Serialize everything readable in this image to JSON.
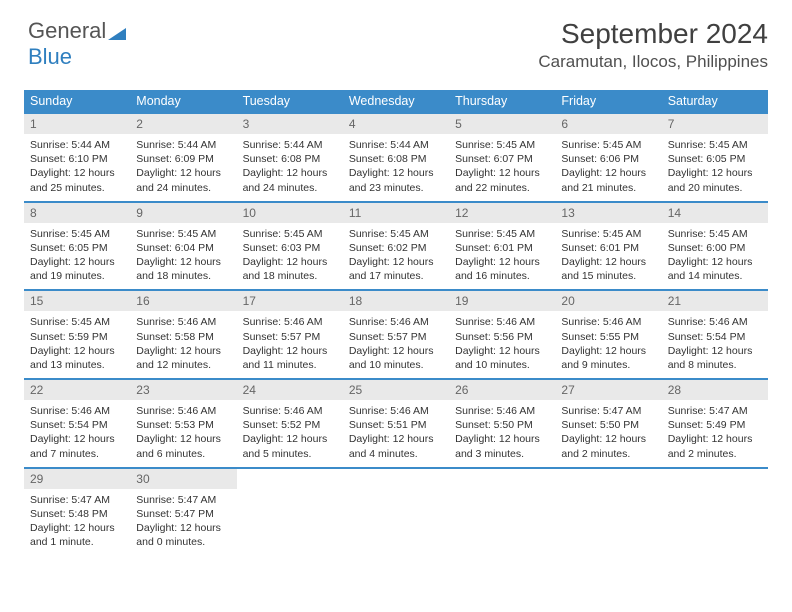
{
  "logo": {
    "word1": "General",
    "word2": "Blue"
  },
  "title": "September 2024",
  "location": "Caramutan, Ilocos, Philippines",
  "colors": {
    "header_bg": "#3b8bc9",
    "header_text": "#ffffff",
    "daynum_bg": "#e9e9e9",
    "border": "#3b8bc9",
    "logo_blue": "#2f7fbf"
  },
  "dayNames": [
    "Sunday",
    "Monday",
    "Tuesday",
    "Wednesday",
    "Thursday",
    "Friday",
    "Saturday"
  ],
  "firstDayIndex": 0,
  "days": [
    {
      "n": 1,
      "sunrise": "5:44 AM",
      "sunset": "6:10 PM",
      "daylight": "12 hours and 25 minutes."
    },
    {
      "n": 2,
      "sunrise": "5:44 AM",
      "sunset": "6:09 PM",
      "daylight": "12 hours and 24 minutes."
    },
    {
      "n": 3,
      "sunrise": "5:44 AM",
      "sunset": "6:08 PM",
      "daylight": "12 hours and 24 minutes."
    },
    {
      "n": 4,
      "sunrise": "5:44 AM",
      "sunset": "6:08 PM",
      "daylight": "12 hours and 23 minutes."
    },
    {
      "n": 5,
      "sunrise": "5:45 AM",
      "sunset": "6:07 PM",
      "daylight": "12 hours and 22 minutes."
    },
    {
      "n": 6,
      "sunrise": "5:45 AM",
      "sunset": "6:06 PM",
      "daylight": "12 hours and 21 minutes."
    },
    {
      "n": 7,
      "sunrise": "5:45 AM",
      "sunset": "6:05 PM",
      "daylight": "12 hours and 20 minutes."
    },
    {
      "n": 8,
      "sunrise": "5:45 AM",
      "sunset": "6:05 PM",
      "daylight": "12 hours and 19 minutes."
    },
    {
      "n": 9,
      "sunrise": "5:45 AM",
      "sunset": "6:04 PM",
      "daylight": "12 hours and 18 minutes."
    },
    {
      "n": 10,
      "sunrise": "5:45 AM",
      "sunset": "6:03 PM",
      "daylight": "12 hours and 18 minutes."
    },
    {
      "n": 11,
      "sunrise": "5:45 AM",
      "sunset": "6:02 PM",
      "daylight": "12 hours and 17 minutes."
    },
    {
      "n": 12,
      "sunrise": "5:45 AM",
      "sunset": "6:01 PM",
      "daylight": "12 hours and 16 minutes."
    },
    {
      "n": 13,
      "sunrise": "5:45 AM",
      "sunset": "6:01 PM",
      "daylight": "12 hours and 15 minutes."
    },
    {
      "n": 14,
      "sunrise": "5:45 AM",
      "sunset": "6:00 PM",
      "daylight": "12 hours and 14 minutes."
    },
    {
      "n": 15,
      "sunrise": "5:45 AM",
      "sunset": "5:59 PM",
      "daylight": "12 hours and 13 minutes."
    },
    {
      "n": 16,
      "sunrise": "5:46 AM",
      "sunset": "5:58 PM",
      "daylight": "12 hours and 12 minutes."
    },
    {
      "n": 17,
      "sunrise": "5:46 AM",
      "sunset": "5:57 PM",
      "daylight": "12 hours and 11 minutes."
    },
    {
      "n": 18,
      "sunrise": "5:46 AM",
      "sunset": "5:57 PM",
      "daylight": "12 hours and 10 minutes."
    },
    {
      "n": 19,
      "sunrise": "5:46 AM",
      "sunset": "5:56 PM",
      "daylight": "12 hours and 10 minutes."
    },
    {
      "n": 20,
      "sunrise": "5:46 AM",
      "sunset": "5:55 PM",
      "daylight": "12 hours and 9 minutes."
    },
    {
      "n": 21,
      "sunrise": "5:46 AM",
      "sunset": "5:54 PM",
      "daylight": "12 hours and 8 minutes."
    },
    {
      "n": 22,
      "sunrise": "5:46 AM",
      "sunset": "5:54 PM",
      "daylight": "12 hours and 7 minutes."
    },
    {
      "n": 23,
      "sunrise": "5:46 AM",
      "sunset": "5:53 PM",
      "daylight": "12 hours and 6 minutes."
    },
    {
      "n": 24,
      "sunrise": "5:46 AM",
      "sunset": "5:52 PM",
      "daylight": "12 hours and 5 minutes."
    },
    {
      "n": 25,
      "sunrise": "5:46 AM",
      "sunset": "5:51 PM",
      "daylight": "12 hours and 4 minutes."
    },
    {
      "n": 26,
      "sunrise": "5:46 AM",
      "sunset": "5:50 PM",
      "daylight": "12 hours and 3 minutes."
    },
    {
      "n": 27,
      "sunrise": "5:47 AM",
      "sunset": "5:50 PM",
      "daylight": "12 hours and 2 minutes."
    },
    {
      "n": 28,
      "sunrise": "5:47 AM",
      "sunset": "5:49 PM",
      "daylight": "12 hours and 2 minutes."
    },
    {
      "n": 29,
      "sunrise": "5:47 AM",
      "sunset": "5:48 PM",
      "daylight": "12 hours and 1 minute."
    },
    {
      "n": 30,
      "sunrise": "5:47 AM",
      "sunset": "5:47 PM",
      "daylight": "12 hours and 0 minutes."
    }
  ],
  "labels": {
    "sunrise": "Sunrise:",
    "sunset": "Sunset:",
    "daylight": "Daylight:"
  }
}
